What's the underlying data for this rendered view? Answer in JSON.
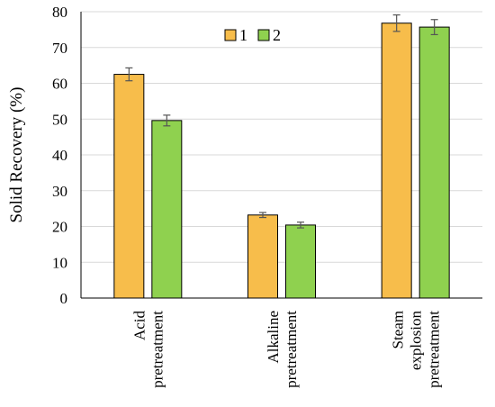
{
  "chart_data": {
    "type": "bar",
    "categories": [
      [
        "Acid",
        "pretreatment"
      ],
      [
        "Alkaline",
        "pretreatment"
      ],
      [
        "Steam",
        "explosion",
        "pretreatment"
      ]
    ],
    "series": [
      {
        "name": "1",
        "values": [
          62.5,
          23.2,
          76.8
        ],
        "errors": [
          1.8,
          0.7,
          2.3
        ],
        "color": "#f7bd4b"
      },
      {
        "name": "2",
        "values": [
          49.6,
          20.4,
          75.7
        ],
        "errors": [
          1.5,
          0.8,
          2.1
        ],
        "color": "#8fd14f"
      }
    ],
    "title": "",
    "xlabel": "",
    "ylabel": "Solid Recovery (%)",
    "ylim": [
      0,
      80
    ],
    "yticks": [
      0,
      10,
      20,
      30,
      40,
      50,
      60,
      70,
      80
    ],
    "grid": true,
    "legend": "top-center",
    "colors": {
      "grid": "#d9d9d9",
      "axis": "#000000",
      "bar_edge": "#000000",
      "error_bar": "#555555"
    }
  }
}
